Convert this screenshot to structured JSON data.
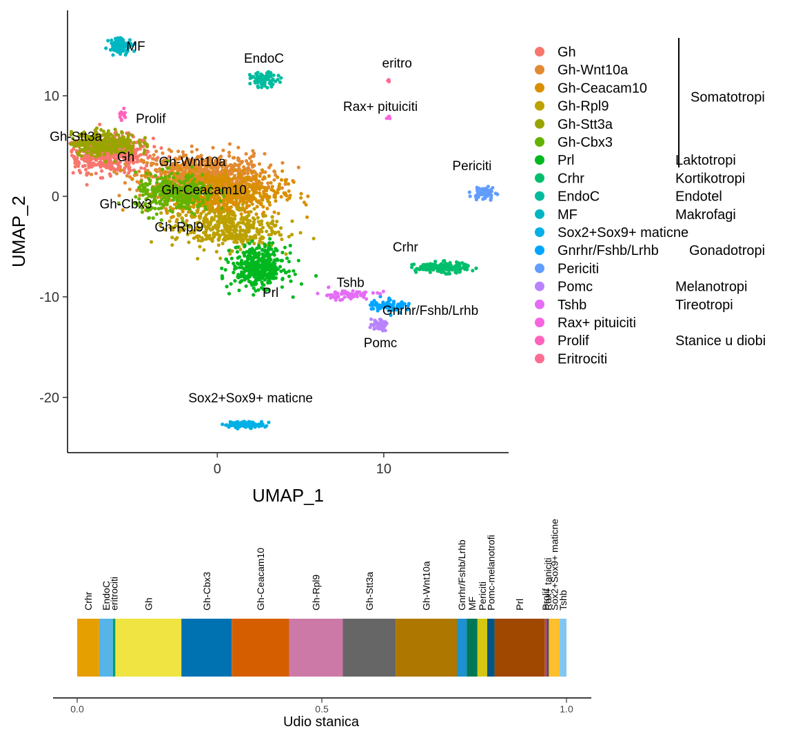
{
  "chart_data": [
    {
      "type": "scatter",
      "xlabel": "UMAP_1",
      "ylabel": "UMAP_2",
      "xticks": [
        0,
        10
      ],
      "yticks": [
        10,
        0,
        -10,
        -20
      ],
      "xlim": [
        -9,
        17.5
      ],
      "ylim": [
        -25.5,
        18.5
      ],
      "clusters": [
        {
          "name": "Gh",
          "color": "#F8766D",
          "label": "Gh",
          "label_at": [
            -5.5,
            3.5
          ],
          "cx": -6.5,
          "cy": 4.2,
          "sx": 1.3,
          "sy": 0.9,
          "n": 520
        },
        {
          "name": "Gh-Wnt10a",
          "color": "#E28A33",
          "label": "Gh-Wnt10a",
          "label_at": [
            -1.5,
            3.0
          ],
          "cx": -0.8,
          "cy": 2.0,
          "sx": 1.8,
          "sy": 1.1,
          "n": 820
        },
        {
          "name": "Gh-Ceacam10",
          "color": "#D89000",
          "label": "Gh-Ceacam10",
          "label_at": [
            -0.8,
            0.2
          ],
          "cx": 0.3,
          "cy": 0.3,
          "sx": 1.8,
          "sy": 1.1,
          "n": 620
        },
        {
          "name": "Gh-Rpl9",
          "color": "#BCA100",
          "label": "Gh-Rpl9",
          "label_at": [
            -2.3,
            -3.5
          ],
          "cx": 0.5,
          "cy": -3.2,
          "sx": 1.6,
          "sy": 1.0,
          "n": 380
        },
        {
          "name": "Gh-Stt3a",
          "color": "#9AA400",
          "label": "Gh-Stt3a",
          "label_at": [
            -8.5,
            5.5
          ],
          "cx": -6.8,
          "cy": 5.3,
          "sx": 1.0,
          "sy": 0.6,
          "n": 300
        },
        {
          "name": "Gh-Cbx3",
          "color": "#64B200",
          "label": "Gh-Cbx3",
          "label_at": [
            -5.5,
            -1.2
          ],
          "cx": -2.5,
          "cy": 0.2,
          "sx": 1.2,
          "sy": 1.0,
          "n": 320
        },
        {
          "name": "Prl",
          "color": "#00B81F",
          "label": "Prl",
          "label_at": [
            3.2,
            -10.0
          ],
          "cx": 2.5,
          "cy": -7.0,
          "sx": 0.8,
          "sy": 1.0,
          "n": 420
        },
        {
          "name": "Crhr",
          "color": "#00BE6C",
          "label": "Crhr",
          "label_at": [
            11.3,
            -5.5
          ],
          "cx": 13.5,
          "cy": -7.1,
          "sx": 0.8,
          "sy": 0.25,
          "n": 170
        },
        {
          "name": "EndoC",
          "color": "#00BB9E",
          "label": "EndoC",
          "label_at": [
            2.8,
            13.3
          ],
          "cx": 2.8,
          "cy": 11.6,
          "sx": 0.4,
          "sy": 0.35,
          "n": 90
        },
        {
          "name": "MF",
          "color": "#00B6C2",
          "label": "MF",
          "label_at": [
            -4.9,
            14.5
          ],
          "cx": -5.8,
          "cy": 15.0,
          "sx": 0.35,
          "sy": 0.4,
          "n": 90
        },
        {
          "name": "Sox2+Sox9+ maticne",
          "color": "#00B0E6",
          "label": "Sox2+Sox9+ maticne",
          "label_at": [
            2.0,
            -20.5
          ],
          "cx": 1.6,
          "cy": -22.7,
          "sx": 0.6,
          "sy": 0.15,
          "n": 110
        },
        {
          "name": "Gnrhr/Fshb/Lrhb",
          "color": "#00A5FF",
          "label": "Gnrhr/Fshb/Lrhb",
          "label_at": [
            12.8,
            -11.8
          ],
          "cx": 10.3,
          "cy": -10.8,
          "sx": 0.6,
          "sy": 0.35,
          "n": 70
        },
        {
          "name": "Periciti",
          "color": "#619CFF",
          "label": "Periciti",
          "label_at": [
            15.3,
            2.6
          ],
          "cx": 16.0,
          "cy": 0.3,
          "sx": 0.35,
          "sy": 0.35,
          "n": 60
        },
        {
          "name": "Pomc",
          "color": "#B983FF",
          "label": "Pomc",
          "label_at": [
            9.8,
            -15.0
          ],
          "cx": 9.7,
          "cy": -12.7,
          "sx": 0.25,
          "sy": 0.3,
          "n": 45
        },
        {
          "name": "Tshb",
          "color": "#E46DF6",
          "label": "Tshb",
          "label_at": [
            8.0,
            -9.0
          ],
          "cx": 7.8,
          "cy": -9.8,
          "sx": 0.9,
          "sy": 0.25,
          "n": 60
        },
        {
          "name": "Rax+ pituiciti",
          "color": "#F763E0",
          "label": "Rax+ pituiciti",
          "label_at": [
            9.8,
            8.5
          ],
          "cx": 10.3,
          "cy": 7.8,
          "sx": 0.1,
          "sy": 0.1,
          "n": 6
        },
        {
          "name": "Prolif",
          "color": "#FF62BC",
          "label": "Prolif",
          "label_at": [
            -4.0,
            7.3
          ],
          "cx": -5.7,
          "cy": 8.1,
          "sx": 0.12,
          "sy": 0.3,
          "n": 14
        },
        {
          "name": "Eritrociti",
          "color": "#FF6C91",
          "label": "eritro",
          "label_at": [
            10.8,
            12.8
          ],
          "cx": 10.3,
          "cy": 11.6,
          "sx": 0.05,
          "sy": 0.08,
          "n": 4
        }
      ],
      "legend_groups": [
        {
          "text": "Somatotropi",
          "entry": 2.5,
          "bracket": true
        },
        {
          "text": "Laktotropi",
          "entry": 6
        },
        {
          "text": "Kortikotropi",
          "entry": 7
        },
        {
          "text": "Endotel",
          "entry": 8
        },
        {
          "text": "Makrofagi",
          "entry": 9
        },
        {
          "text": "Gonadotropi",
          "entry": 11
        },
        {
          "text": "Melanotropi",
          "entry": 13
        },
        {
          "text": "Tireotropi",
          "entry": 14
        },
        {
          "text": "Stanice u diobi",
          "entry": 16
        }
      ]
    },
    {
      "type": "bar",
      "orientation": "stacked-horizontal",
      "xlabel": "Udio stanica",
      "xticks": [
        "0.0",
        "0.5",
        "1.0"
      ],
      "xlim": [
        0,
        1
      ],
      "segments": [
        {
          "label": "Crhr",
          "value": 0.045,
          "color": "#E69F00"
        },
        {
          "label": "EndoC",
          "value": 0.028,
          "color": "#56B4E9"
        },
        {
          "label": "eritrociti",
          "value": 0.005,
          "color": "#009E73"
        },
        {
          "label": "Gh",
          "value": 0.135,
          "color": "#F0E442"
        },
        {
          "label": "Gh-Cbx3",
          "value": 0.103,
          "color": "#0072B2"
        },
        {
          "label": "Gh-Ceacam10",
          "value": 0.117,
          "color": "#D55E00"
        },
        {
          "label": "Gh-Rpl9",
          "value": 0.11,
          "color": "#CC79A7"
        },
        {
          "label": "Gh-Stt3a",
          "value": 0.108,
          "color": "#666666"
        },
        {
          "label": "Gh-Wnt10a",
          "value": 0.125,
          "color": "#AD7700"
        },
        {
          "label": "Gnrhr/Fshb/Lrhb",
          "value": 0.02,
          "color": "#1C91D4"
        },
        {
          "label": "MF",
          "value": 0.022,
          "color": "#007756"
        },
        {
          "label": "Periciti",
          "value": 0.02,
          "color": "#D5C711"
        },
        {
          "label": "Pomc-melanotrofi",
          "value": 0.015,
          "color": "#005685"
        },
        {
          "label": "Prl",
          "value": 0.103,
          "color": "#A04700"
        },
        {
          "label": "Prolif",
          "value": 0.004,
          "color": "#B14380"
        },
        {
          "label": "Rax+ taniciti",
          "value": 0.004,
          "color": "#4D4D4D"
        },
        {
          "label": "Sox2+Sox9+ maticne",
          "value": 0.022,
          "color": "#FFBE2D"
        },
        {
          "label": "Tshb",
          "value": 0.014,
          "color": "#80C7EF"
        }
      ]
    }
  ]
}
